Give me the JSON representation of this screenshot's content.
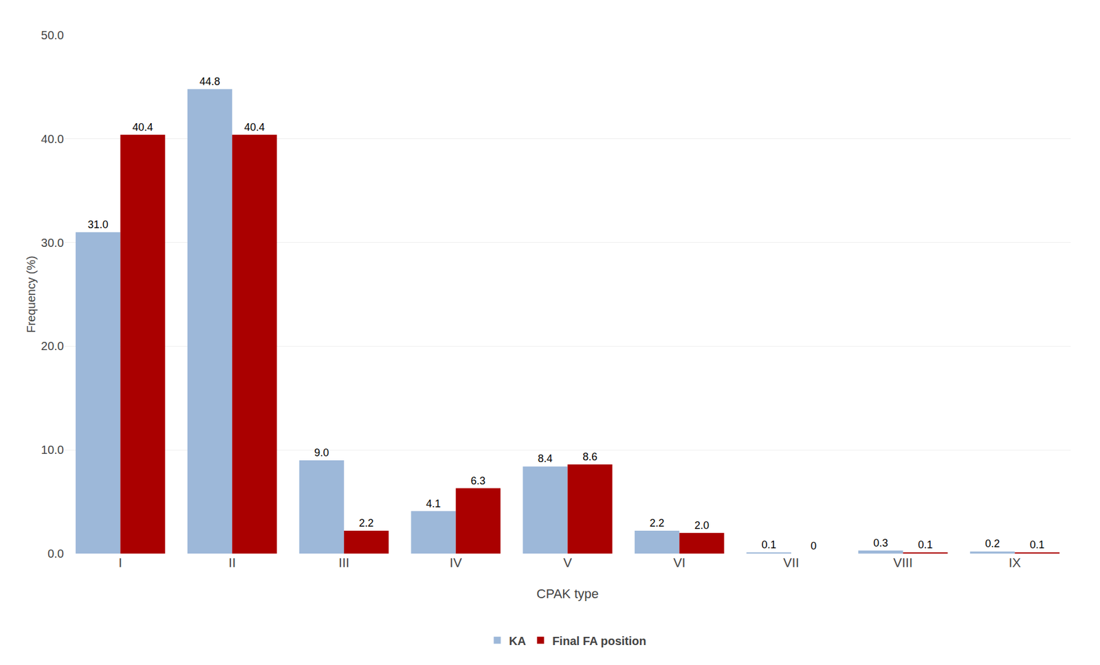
{
  "chart_data": {
    "type": "bar",
    "xlabel": "CPAK type",
    "ylabel": "Frequency (%)",
    "categories": [
      "I",
      "II",
      "III",
      "IV",
      "V",
      "VI",
      "VII",
      "VIII",
      "IX"
    ],
    "series": [
      {
        "name": "KA",
        "color": "#9DB8D9",
        "values": [
          31.0,
          44.8,
          9.0,
          4.1,
          8.4,
          2.2,
          0.1,
          0.3,
          0.2
        ],
        "value_labels": [
          "31.0",
          "44.8",
          "9.0",
          "4.1",
          "8.4",
          "2.2",
          "0.1",
          "0.3",
          "0.2"
        ]
      },
      {
        "name": "Final FA position",
        "color": "#AA0000",
        "values": [
          40.4,
          40.4,
          2.2,
          6.3,
          8.6,
          2.0,
          0.0,
          0.1,
          0.1
        ],
        "value_labels": [
          "40.4",
          "40.4",
          "2.2",
          "6.3",
          "8.6",
          "2.0",
          "0",
          "0.1",
          "0.1"
        ]
      }
    ],
    "ylim": [
      0,
      50
    ],
    "yticks": [
      {
        "value": 0,
        "label": "0.0"
      },
      {
        "value": 10,
        "label": "10.0"
      },
      {
        "value": 20,
        "label": "20.0"
      },
      {
        "value": 30,
        "label": "30.0"
      },
      {
        "value": 40,
        "label": "40.0"
      },
      {
        "value": 50,
        "label": "50.0"
      }
    ],
    "grid": true,
    "legend": "bottom",
    "data_labels": true
  }
}
